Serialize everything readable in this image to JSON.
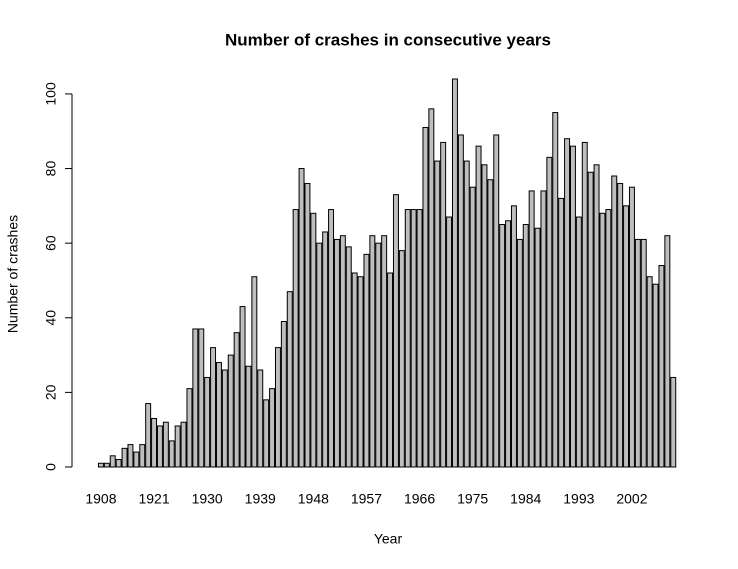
{
  "chart_data": {
    "type": "bar",
    "title": "Number of crashes in consecutive years",
    "x_label": "Year",
    "y_label": "Number of crashes",
    "categories": [
      "1908",
      null,
      null,
      null,
      null,
      null,
      null,
      null,
      null,
      "1921",
      null,
      null,
      null,
      null,
      null,
      null,
      null,
      null,
      "1930",
      null,
      null,
      null,
      null,
      null,
      null,
      null,
      null,
      "1939",
      null,
      null,
      null,
      null,
      null,
      null,
      null,
      null,
      "1948",
      null,
      null,
      null,
      null,
      null,
      null,
      null,
      null,
      "1957",
      null,
      null,
      null,
      null,
      null,
      null,
      null,
      null,
      "1966",
      null,
      null,
      null,
      null,
      null,
      null,
      null,
      null,
      "1975",
      null,
      null,
      null,
      null,
      null,
      null,
      null,
      null,
      "1984",
      null,
      null,
      null,
      null,
      null,
      null,
      null,
      null,
      "1993",
      null,
      null,
      null,
      null,
      null,
      null,
      null,
      null,
      "2002",
      null,
      null,
      null,
      null,
      null,
      null,
      null
    ],
    "values": [
      1,
      1,
      3,
      2,
      5,
      6,
      4,
      6,
      17,
      13,
      11,
      12,
      7,
      11,
      12,
      21,
      37,
      37,
      24,
      32,
      28,
      26,
      30,
      36,
      43,
      27,
      51,
      26,
      18,
      21,
      32,
      39,
      47,
      69,
      80,
      76,
      68,
      60,
      63,
      69,
      61,
      62,
      59,
      52,
      51,
      57,
      62,
      60,
      62,
      52,
      73,
      58,
      69,
      69,
      69,
      91,
      96,
      82,
      87,
      67,
      104,
      89,
      82,
      75,
      86,
      81,
      77,
      89,
      65,
      66,
      70,
      61,
      65,
      74,
      64,
      74,
      83,
      95,
      72,
      88,
      86,
      67,
      87,
      79,
      81,
      68,
      69,
      78,
      76,
      70,
      75,
      61,
      61,
      51,
      49,
      54,
      62,
      24
    ],
    "color": "#bebebe",
    "ylim": [
      0,
      104
    ],
    "yticks": [
      0,
      20,
      40,
      60,
      80,
      100
    ]
  }
}
